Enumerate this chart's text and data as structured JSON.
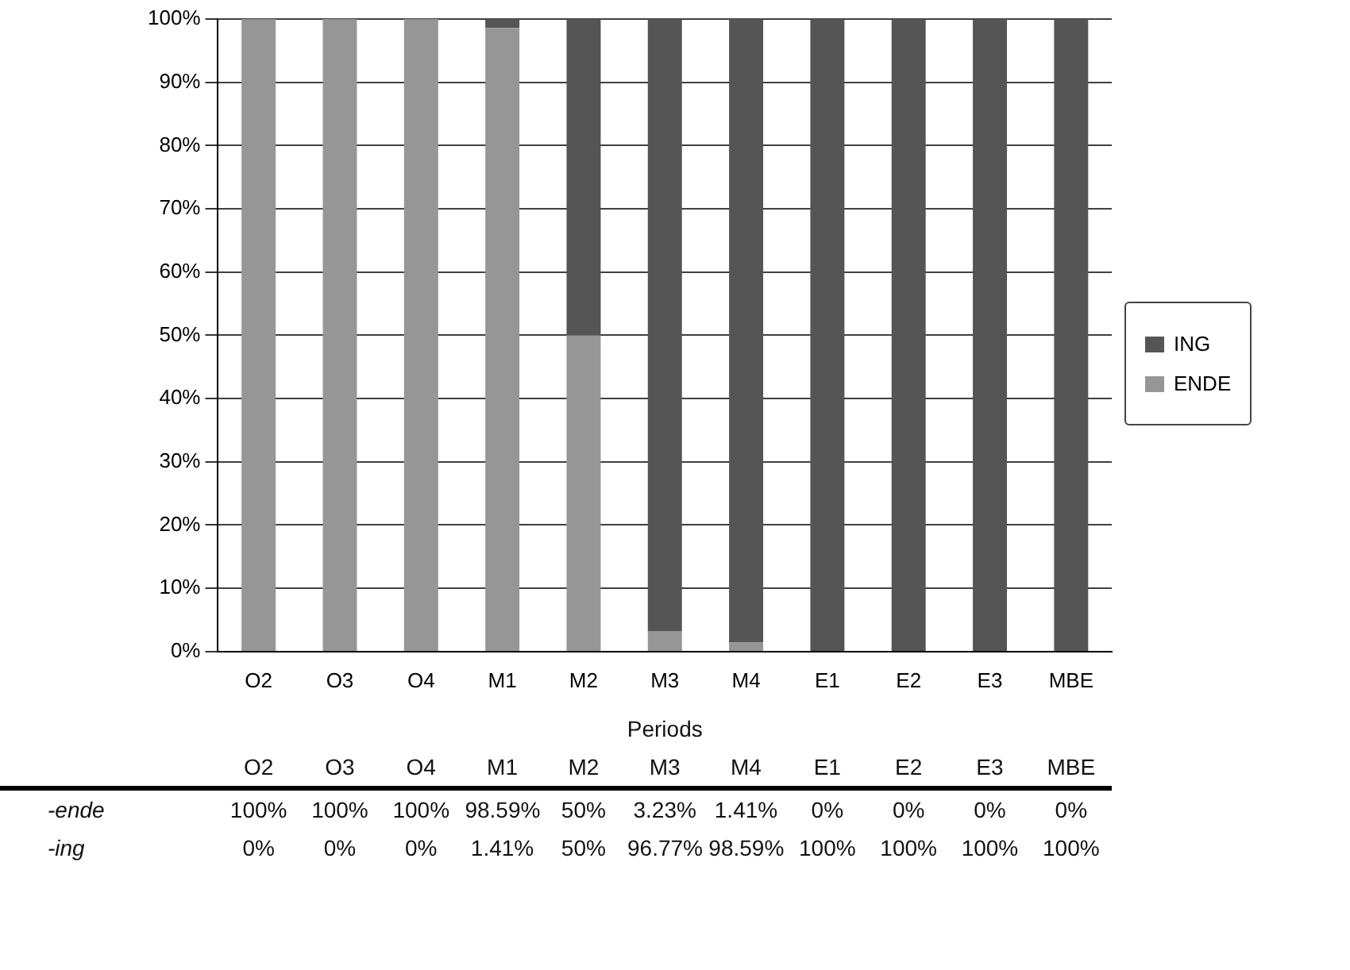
{
  "chart_data": {
    "type": "bar",
    "stacked": true,
    "xlabel": "Periods",
    "categories": [
      "O2",
      "O3",
      "O4",
      "M1",
      "M2",
      "M3",
      "M4",
      "E1",
      "E2",
      "E3",
      "MBE"
    ],
    "series": [
      {
        "name": "ENDE",
        "color": "#969696",
        "values": [
          100,
          100,
          100,
          98.59,
          50,
          3.23,
          1.41,
          0,
          0,
          0,
          0
        ],
        "value_labels": [
          "100%",
          "100%",
          "100%",
          "98.59%",
          "50%",
          "3.23%",
          "1.41%",
          "0%",
          "0%",
          "0%",
          "0%"
        ]
      },
      {
        "name": "ING",
        "color": "#555555",
        "values": [
          0,
          0,
          0,
          1.41,
          50,
          96.77,
          98.59,
          100,
          100,
          100,
          100
        ],
        "value_labels": [
          "0%",
          "0%",
          "0%",
          "1.41%",
          "50%",
          "96.77%",
          "98.59%",
          "100%",
          "100%",
          "100%",
          "100%"
        ]
      }
    ],
    "annotations": [
      "-ende",
      "-ing"
    ],
    "ylim": [
      0,
      100
    ],
    "yticks": [
      {
        "value": 0,
        "label": "0%"
      },
      {
        "value": 10,
        "label": "10%"
      },
      {
        "value": 20,
        "label": "20%"
      },
      {
        "value": 30,
        "label": "30%"
      },
      {
        "value": 40,
        "label": "40%"
      },
      {
        "value": 50,
        "label": "50%"
      },
      {
        "value": 60,
        "label": "60%"
      },
      {
        "value": 70,
        "label": "70%"
      },
      {
        "value": 80,
        "label": "80%"
      },
      {
        "value": 90,
        "label": "90%"
      },
      {
        "value": 100,
        "label": "100%"
      }
    ],
    "grid": "y",
    "legend": "right"
  }
}
